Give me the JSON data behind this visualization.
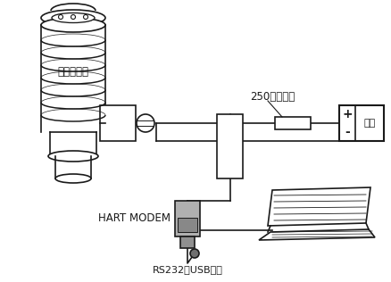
{
  "bg_color": "#ffffff",
  "line_color": "#1a1a1a",
  "label_radar": "雷达液位计",
  "label_resistor": "250欧姆电阻",
  "label_power": "电源",
  "label_modem": "HART MODEM",
  "label_usb": "RS232或USB接口",
  "power_plus": "+",
  "power_minus": "-",
  "figsize": [
    4.38,
    3.16
  ],
  "dpi": 100
}
